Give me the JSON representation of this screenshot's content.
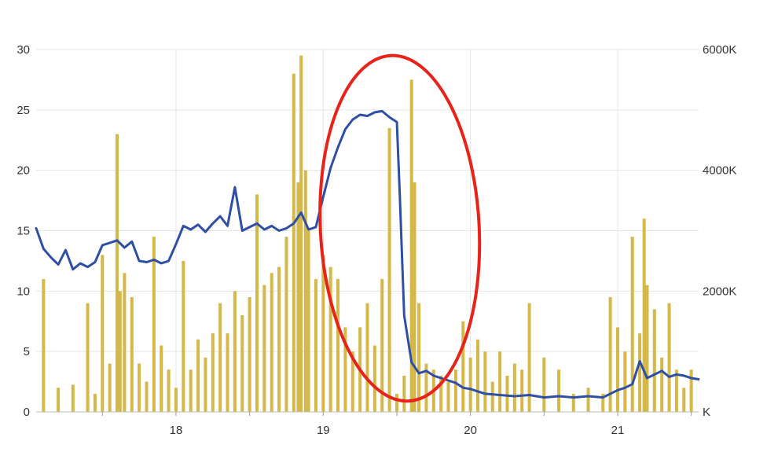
{
  "chart_data": {
    "type": "bar",
    "combo": "bars + line",
    "x": {
      "min": 17.05,
      "max": 21.55,
      "ticks": [
        18,
        19,
        20,
        21
      ],
      "tick_labels": [
        "18",
        "19",
        "20",
        "21"
      ]
    },
    "y_left": {
      "min": 0,
      "max": 30,
      "ticks": [
        0,
        5,
        10,
        15,
        20,
        25,
        30
      ],
      "tick_labels": [
        "0",
        "5",
        "10",
        "15",
        "20",
        "25",
        "30"
      ]
    },
    "y_right": {
      "min": 0,
      "max": 6000,
      "ticks": [
        0,
        2000,
        4000,
        6000
      ],
      "tick_labels": [
        "K",
        "2000K",
        "4000K",
        "6000K"
      ]
    },
    "grid": true,
    "legend": "none",
    "colors": {
      "bars": "#d4b84a",
      "line": "#2e4fa3",
      "annotation": "#e8231a",
      "grid": "#e6e6e6"
    },
    "series": [
      {
        "kind": "line",
        "axis": "left",
        "x": [
          17.05,
          17.1,
          17.15,
          17.2,
          17.25,
          17.3,
          17.35,
          17.4,
          17.45,
          17.5,
          17.55,
          17.6,
          17.65,
          17.7,
          17.75,
          17.8,
          17.85,
          17.9,
          17.95,
          18.0,
          18.05,
          18.1,
          18.15,
          18.2,
          18.25,
          18.3,
          18.35,
          18.4,
          18.45,
          18.5,
          18.55,
          18.6,
          18.65,
          18.7,
          18.75,
          18.8,
          18.85,
          18.9,
          18.95,
          19.0,
          19.05,
          19.1,
          19.15,
          19.2,
          19.25,
          19.3,
          19.35,
          19.4,
          19.45,
          19.5,
          19.52,
          19.55,
          19.6,
          19.65,
          19.7,
          19.75,
          19.8,
          19.85,
          19.9,
          19.95,
          20.0,
          20.05,
          20.1,
          20.2,
          20.3,
          20.4,
          20.5,
          20.6,
          20.7,
          20.8,
          20.9,
          21.0,
          21.05,
          21.1,
          21.15,
          21.2,
          21.25,
          21.3,
          21.35,
          21.4,
          21.45,
          21.5,
          21.55
        ],
        "y": [
          15.2,
          13.5,
          12.8,
          12.2,
          13.4,
          11.8,
          12.3,
          12.0,
          12.4,
          13.8,
          14.0,
          14.2,
          13.6,
          14.1,
          12.5,
          12.4,
          12.6,
          12.3,
          12.5,
          13.9,
          15.4,
          15.1,
          15.5,
          14.9,
          15.6,
          16.2,
          15.4,
          18.6,
          15.0,
          15.3,
          15.6,
          15.1,
          15.4,
          15.0,
          15.2,
          15.6,
          16.5,
          15.1,
          15.3,
          17.8,
          20.2,
          21.9,
          23.4,
          24.2,
          24.6,
          24.5,
          24.8,
          24.9,
          24.4,
          24.0,
          18.0,
          8.0,
          4.1,
          3.2,
          3.4,
          3.0,
          2.8,
          2.6,
          2.4,
          2.0,
          1.9,
          1.7,
          1.5,
          1.4,
          1.3,
          1.4,
          1.2,
          1.3,
          1.2,
          1.3,
          1.2,
          1.8,
          2.0,
          2.3,
          4.2,
          2.8,
          3.1,
          3.4,
          2.9,
          3.1,
          3.0,
          2.8,
          2.7
        ]
      },
      {
        "kind": "bar",
        "axis": "right",
        "x": [
          17.1,
          17.2,
          17.3,
          17.4,
          17.45,
          17.5,
          17.55,
          17.6,
          17.62,
          17.65,
          17.7,
          17.75,
          17.8,
          17.85,
          17.9,
          17.95,
          18.0,
          18.05,
          18.1,
          18.15,
          18.2,
          18.25,
          18.3,
          18.35,
          18.4,
          18.45,
          18.5,
          18.55,
          18.6,
          18.65,
          18.7,
          18.75,
          18.8,
          18.83,
          18.85,
          18.88,
          18.9,
          18.95,
          19.0,
          19.05,
          19.1,
          19.15,
          19.2,
          19.25,
          19.3,
          19.35,
          19.4,
          19.45,
          19.5,
          19.55,
          19.6,
          19.62,
          19.65,
          19.7,
          19.75,
          19.8,
          19.85,
          19.9,
          19.95,
          20.0,
          20.05,
          20.1,
          20.15,
          20.2,
          20.25,
          20.3,
          20.35,
          20.4,
          20.5,
          20.6,
          20.7,
          20.8,
          20.9,
          20.95,
          21.0,
          21.05,
          21.1,
          21.15,
          21.18,
          21.2,
          21.25,
          21.3,
          21.35,
          21.4,
          21.45,
          21.5
        ],
        "y": [
          2200,
          400,
          450,
          1800,
          300,
          2600,
          800,
          4600,
          2000,
          2300,
          1900,
          800,
          500,
          2900,
          1100,
          700,
          400,
          2500,
          700,
          1200,
          900,
          1300,
          1800,
          1300,
          2000,
          1600,
          1900,
          3600,
          2100,
          2300,
          2400,
          2900,
          5600,
          3800,
          5900,
          4000,
          3000,
          2200,
          2600,
          2400,
          2200,
          1400,
          1000,
          1400,
          1800,
          1100,
          2200,
          4700,
          300,
          600,
          5500,
          3800,
          1800,
          800,
          700,
          600,
          500,
          700,
          1500,
          900,
          1200,
          1000,
          500,
          1000,
          600,
          800,
          700,
          1800,
          900,
          700,
          300,
          400,
          300,
          1900,
          1400,
          1000,
          2900,
          1300,
          3200,
          2100,
          1700,
          900,
          1800,
          700,
          400,
          700
        ]
      }
    ]
  }
}
